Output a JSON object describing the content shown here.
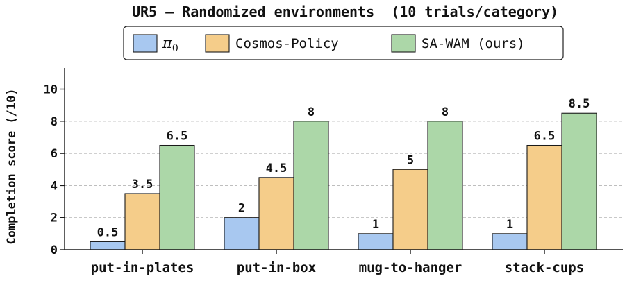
{
  "chart_data": {
    "type": "bar",
    "title": "UR5 — Randomized environments  (10 trials/category)",
    "xlabel": "",
    "ylabel": "Completion score (/10)",
    "categories": [
      "put-in-plates",
      "put-in-box",
      "mug-to-hanger",
      "stack-cups"
    ],
    "ylim": [
      0,
      10.8
    ],
    "yticks": [
      0,
      2,
      4,
      6,
      8,
      10
    ],
    "grid": true,
    "legend_position": "top",
    "series": [
      {
        "name": "π",
        "name_subscript": "0",
        "color": "#a8c8f0",
        "values": [
          0.5,
          2,
          1,
          1
        ],
        "value_labels": [
          "0.5",
          "2",
          "1",
          "1"
        ]
      },
      {
        "name": "Cosmos-Policy",
        "color": "#f5cd8a",
        "values": [
          3.5,
          4.5,
          5,
          6.5
        ],
        "value_labels": [
          "3.5",
          "4.5",
          "5",
          "6.5"
        ]
      },
      {
        "name": "SA-WAM (ours)",
        "color": "#acd7a8",
        "values": [
          6.5,
          8,
          8,
          8.5
        ],
        "value_labels": [
          "6.5",
          "8",
          "8",
          "8.5"
        ]
      }
    ]
  }
}
